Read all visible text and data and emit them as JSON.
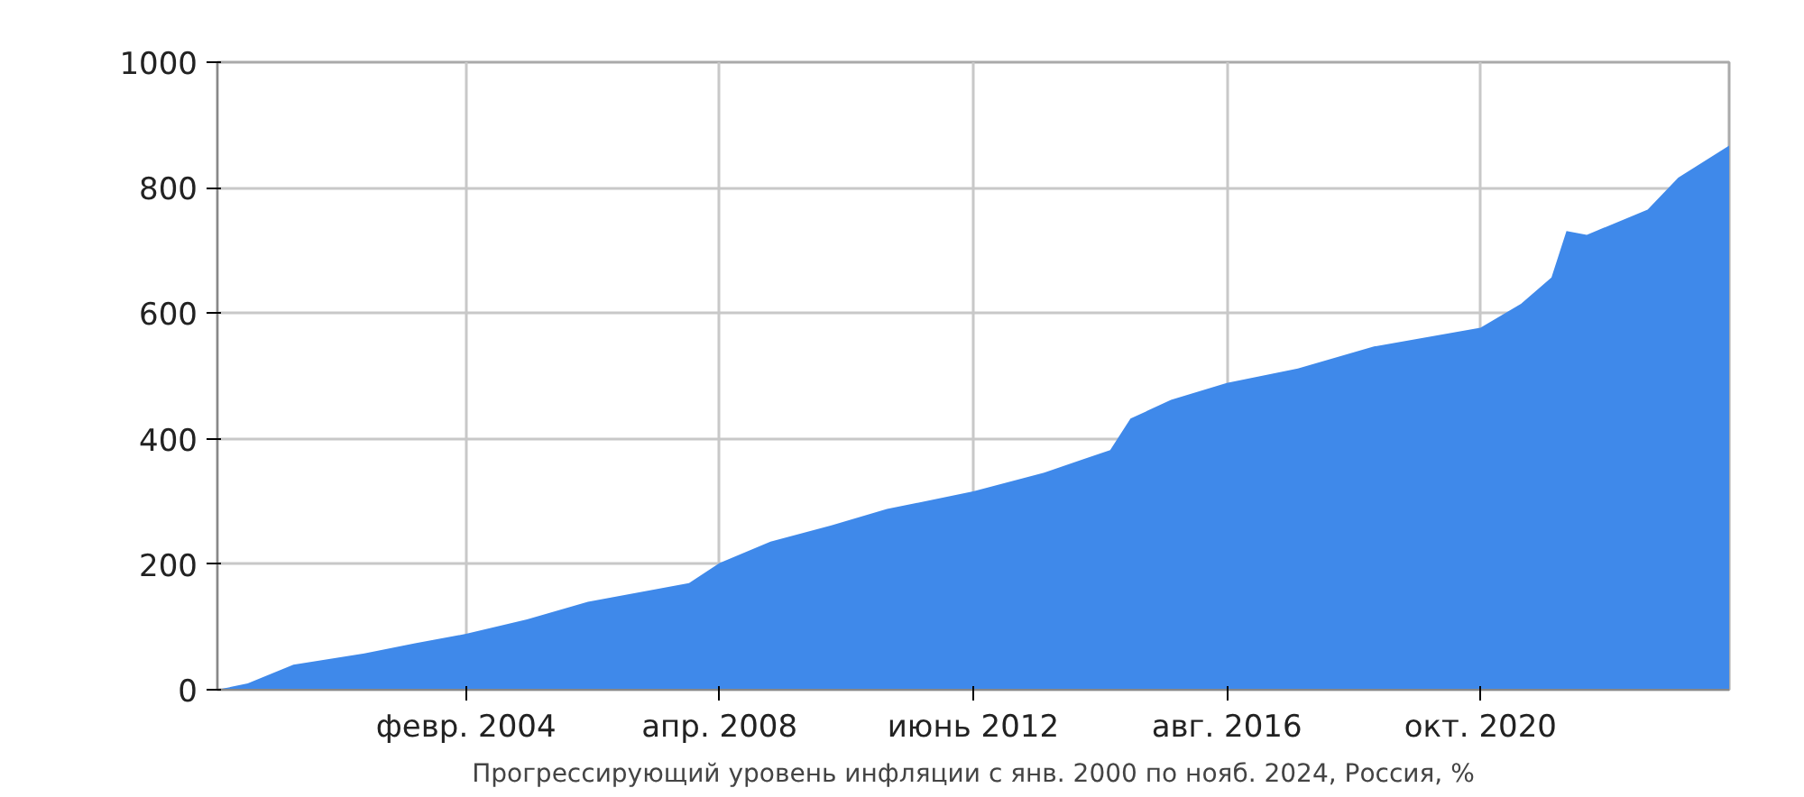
{
  "chart_data": {
    "type": "area",
    "xlabel": "Прогрессирующий уровень инфляции с янв. 2000 по нояб. 2024, Россия, %",
    "x": [
      "2000-01",
      "2000-07",
      "2001-04",
      "2002-06",
      "2003-04",
      "2004-02",
      "2005-02",
      "2006-02",
      "2007-10",
      "2008-04",
      "2009-02",
      "2010-02",
      "2011-01",
      "2012-06",
      "2013-08",
      "2014-09",
      "2015-01",
      "2015-09",
      "2016-08",
      "2017-10",
      "2019-01",
      "2020-10",
      "2021-06",
      "2021-12",
      "2022-03",
      "2022-07",
      "2023-07",
      "2024-01",
      "2024-11"
    ],
    "series": [
      {
        "color": "#3f89ea",
        "values": [
          0,
          10,
          40,
          58,
          74,
          89,
          112,
          140,
          170,
          202,
          236,
          262,
          288,
          316,
          346,
          382,
          432,
          462,
          489,
          512,
          547,
          577,
          615,
          657,
          731,
          725,
          765,
          816,
          867
        ]
      }
    ],
    "xlim": [
      "2000-01",
      "2024-11"
    ],
    "xticks": [
      {
        "value": "2004-02",
        "label": "февр. 2004"
      },
      {
        "value": "2008-04",
        "label": "апр. 2008"
      },
      {
        "value": "2012-06",
        "label": "июнь 2012"
      },
      {
        "value": "2016-08",
        "label": "авг. 2016"
      },
      {
        "value": "2020-10",
        "label": "окт. 2020"
      }
    ],
    "ylim": [
      0,
      1000
    ],
    "yticks": [
      0,
      200,
      400,
      600,
      800,
      1000
    ],
    "grid": true
  }
}
